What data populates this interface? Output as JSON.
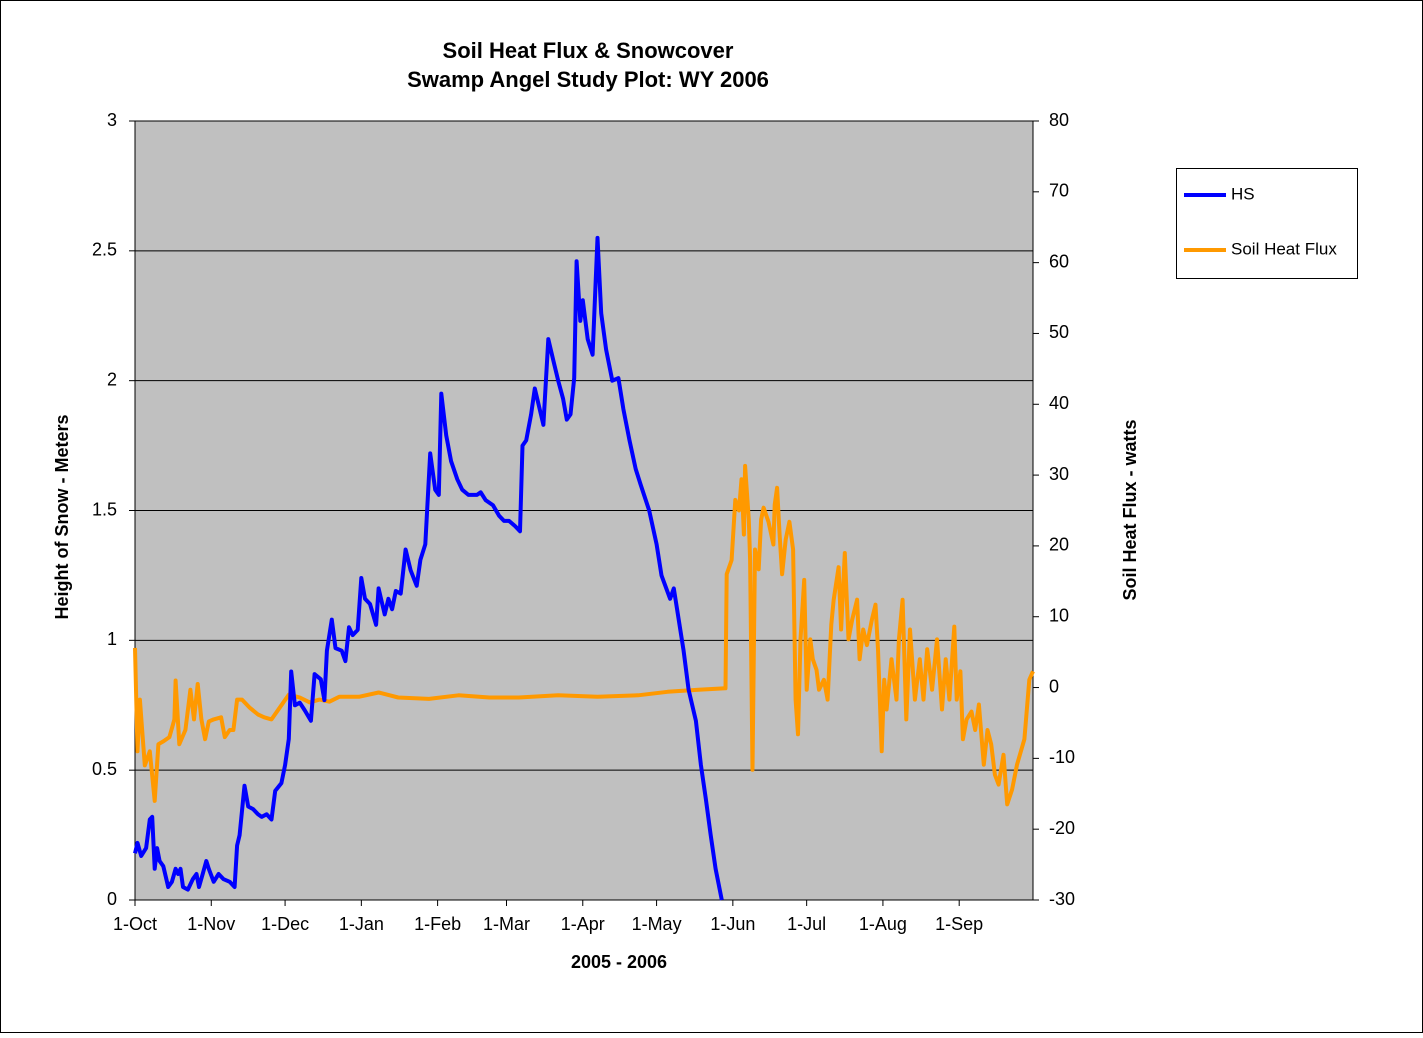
{
  "chart_data": {
    "type": "line",
    "title": "Soil Heat Flux & Snowcover",
    "subtitle": "Swamp Angel Study Plot: WY 2006",
    "xlabel": "2005 - 2006",
    "ylabel": "Height of Snow - Meters",
    "y2label": "Soil Heat Flux - watts",
    "xlim": [
      0,
      365
    ],
    "xticks": [
      {
        "value": 0,
        "label": "1-Oct"
      },
      {
        "value": 31,
        "label": "1-Nov"
      },
      {
        "value": 61,
        "label": "1-Dec"
      },
      {
        "value": 92,
        "label": "1-Jan"
      },
      {
        "value": 123,
        "label": "1-Feb"
      },
      {
        "value": 151,
        "label": "1-Mar"
      },
      {
        "value": 182,
        "label": "1-Apr"
      },
      {
        "value": 212,
        "label": "1-May"
      },
      {
        "value": 243,
        "label": "1-Jun"
      },
      {
        "value": 273,
        "label": "1-Jul"
      },
      {
        "value": 304,
        "label": "1-Aug"
      },
      {
        "value": 335,
        "label": "1-Sep"
      }
    ],
    "ylim": [
      0,
      3
    ],
    "yticks": [
      0,
      0.5,
      1,
      1.5,
      2,
      2.5,
      3
    ],
    "y2lim": [
      -30,
      80
    ],
    "y2ticks": [
      -30,
      -20,
      -10,
      0,
      10,
      20,
      30,
      40,
      50,
      60,
      70,
      80
    ],
    "grid": true,
    "legend": "right",
    "series": [
      {
        "name": "HS",
        "color": "#0000ff",
        "x": [
          0,
          1,
          2.5,
          4.5,
          6,
          7,
          8,
          9,
          10,
          11.5,
          13.5,
          15,
          16.5,
          17.5,
          18.5,
          19.5,
          21.5,
          23.5,
          25,
          26,
          27.5,
          29,
          30,
          32,
          34,
          36,
          38.5,
          40.5,
          41.5,
          42.5,
          44.5,
          46,
          48,
          50,
          51.5,
          53.5,
          55.5,
          57,
          59.5,
          61,
          62.5,
          63.5,
          65,
          67,
          69,
          71.5,
          73,
          75.5,
          77,
          78,
          80,
          81.5,
          84,
          85.5,
          87,
          88.5,
          90.5,
          92,
          93.5,
          95.5,
          98,
          99,
          101.5,
          103,
          104.5,
          106,
          108,
          110,
          112,
          114.5,
          116,
          118,
          120,
          122,
          123.5,
          124.5,
          126.5,
          128.5,
          131,
          133,
          135.5,
          139,
          140.5,
          142.5,
          145.5,
          148,
          150,
          152,
          154.5,
          156.5,
          157.5,
          159,
          161,
          162.5,
          164.5,
          166,
          168,
          170,
          172,
          174,
          175.5,
          177,
          178.5,
          179.5,
          181,
          182,
          184,
          186,
          188,
          189.5,
          191.5,
          194,
          196.5,
          198.5,
          201,
          203.5,
          205.5,
          209,
          212,
          214,
          217.5,
          219,
          221,
          223,
          225,
          228,
          230,
          232,
          234,
          236,
          238.5
        ],
        "values": [
          0.18,
          0.22,
          0.17,
          0.2,
          0.31,
          0.32,
          0.12,
          0.2,
          0.15,
          0.13,
          0.05,
          0.07,
          0.12,
          0.1,
          0.12,
          0.05,
          0.04,
          0.08,
          0.1,
          0.05,
          0.1,
          0.15,
          0.12,
          0.07,
          0.1,
          0.08,
          0.07,
          0.05,
          0.21,
          0.25,
          0.44,
          0.36,
          0.35,
          0.33,
          0.32,
          0.33,
          0.31,
          0.42,
          0.45,
          0.52,
          0.62,
          0.88,
          0.75,
          0.76,
          0.73,
          0.69,
          0.87,
          0.85,
          0.77,
          0.96,
          1.08,
          0.97,
          0.96,
          0.92,
          1.05,
          1.02,
          1.04,
          1.24,
          1.16,
          1.14,
          1.06,
          1.2,
          1.1,
          1.16,
          1.12,
          1.19,
          1.18,
          1.35,
          1.27,
          1.21,
          1.31,
          1.37,
          1.72,
          1.58,
          1.56,
          1.95,
          1.79,
          1.69,
          1.62,
          1.58,
          1.56,
          1.56,
          1.57,
          1.54,
          1.52,
          1.48,
          1.46,
          1.46,
          1.44,
          1.42,
          1.75,
          1.77,
          1.87,
          1.97,
          1.89,
          1.83,
          2.16,
          2.08,
          2.0,
          1.93,
          1.85,
          1.87,
          2.01,
          2.46,
          2.23,
          2.31,
          2.16,
          2.1,
          2.55,
          2.26,
          2.12,
          2.0,
          2.01,
          1.89,
          1.77,
          1.66,
          1.6,
          1.5,
          1.37,
          1.25,
          1.16,
          1.2,
          1.08,
          0.96,
          0.81,
          0.69,
          0.52,
          0.39,
          0.25,
          0.12,
          0
        ]
      },
      {
        "name": "Soil Heat Flux",
        "color": "#ff9900",
        "axis": "y2",
        "x": [
          0,
          1,
          2,
          4,
          6,
          8,
          9.5,
          11.5,
          14,
          16,
          16.5,
          18,
          20.5,
          22.5,
          24,
          25.5,
          27,
          28.5,
          30,
          32,
          35,
          36.5,
          38.5,
          40,
          41.5,
          43.5,
          46.5,
          50,
          52.5,
          55.5,
          58.5,
          62.5,
          67,
          71,
          75,
          79,
          83,
          91,
          99,
          107,
          119.5,
          131.5,
          144,
          156,
          172,
          188,
          204.5,
          216.5,
          229,
          240,
          240.5,
          242.5,
          244,
          245.5,
          246.5,
          247.5,
          248,
          249.5,
          250,
          251,
          252,
          253.5,
          254.5,
          255.5,
          257.5,
          259.5,
          260,
          261,
          262,
          263,
          264.5,
          266,
          267.5,
          268.5,
          269.5,
          270.5,
          272,
          273,
          274.5,
          275.5,
          277,
          278,
          280,
          281.5,
          283,
          284,
          286,
          287,
          288.5,
          290,
          291.5,
          293.5,
          294.5,
          296,
          297.5,
          299.5,
          301,
          302,
          303.5,
          304.5,
          305.5,
          307.5,
          309.5,
          310.5,
          312,
          313.5,
          315,
          317,
          319,
          320.5,
          322,
          324,
          326,
          328,
          329.5,
          331,
          333,
          334,
          335.5,
          336.5,
          338,
          340,
          341.5,
          343,
          345,
          346.5,
          348,
          349.5,
          351,
          353,
          354.5,
          356.5,
          358.5,
          361.5,
          363.5,
          365
        ],
        "values": [
          5.6,
          -9,
          -1.7,
          -11,
          -9,
          -16,
          -8,
          -7.6,
          -7,
          -4.5,
          1,
          -8,
          -6,
          -0.3,
          -4.5,
          0.5,
          -4.5,
          -7.3,
          -4.8,
          -4.5,
          -4.2,
          -7,
          -6,
          -6,
          -1.7,
          -1.7,
          -2.8,
          -3.8,
          -4.2,
          -4.5,
          -3,
          -1,
          -1.4,
          -2.1,
          -1.7,
          -2,
          -1.3,
          -1.3,
          -0.7,
          -1.4,
          -1.6,
          -1.1,
          -1.4,
          -1.4,
          -1.1,
          -1.3,
          -1.1,
          -0.6,
          -0.3,
          -0.1,
          16,
          18,
          26.5,
          25,
          29.4,
          21.6,
          31.3,
          23.7,
          18,
          -11.6,
          19.5,
          16.7,
          23.7,
          25.4,
          23.4,
          20.2,
          25.8,
          28.2,
          21.6,
          16,
          20.9,
          23.4,
          19.5,
          -1.7,
          -6.6,
          6.8,
          15.2,
          -0.3,
          6.8,
          4,
          2.5,
          -0.3,
          1.1,
          -1.7,
          8.9,
          12.4,
          17,
          8.2,
          19,
          6.8,
          9.6,
          12.4,
          4,
          8.2,
          6,
          9.6,
          11.7,
          5.4,
          -9,
          1.1,
          -3.1,
          4,
          -1.7,
          6.8,
          12.4,
          -4.5,
          8.2,
          -1.7,
          4,
          -1.7,
          5.4,
          -0.3,
          6.8,
          -3.1,
          4,
          -1.7,
          8.6,
          -1.7,
          2.3,
          -7.3,
          -4.5,
          -3.4,
          -6,
          -2.4,
          -10.9,
          -6,
          -8,
          -12.3,
          -13.7,
          -9.5,
          -16.5,
          -14.4,
          -10.9,
          -7.3,
          1.1,
          2.3
        ]
      }
    ]
  }
}
